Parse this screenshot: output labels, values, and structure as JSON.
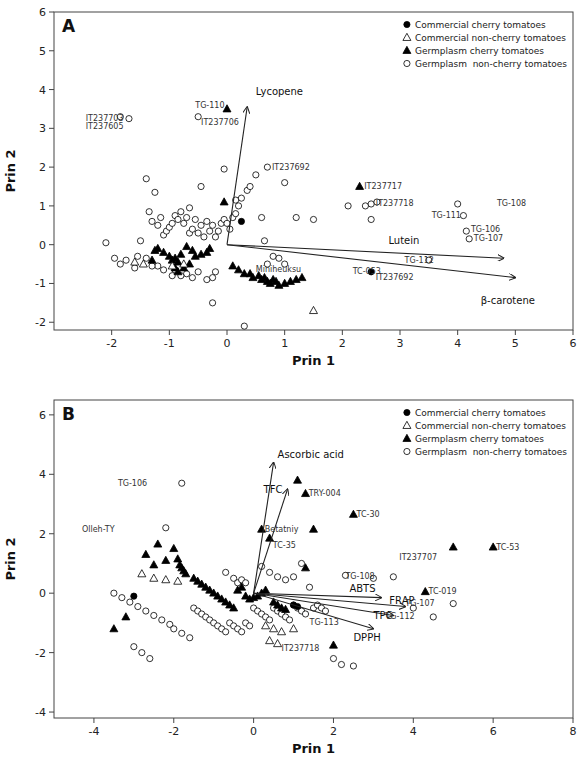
{
  "chart_data": [
    {
      "type": "scatter",
      "title": "A",
      "x_label": "Prin 1",
      "y_label": "Prin 2",
      "xlim": [
        -3,
        6
      ],
      "ylim": [
        -2.2,
        6
      ],
      "xticks": [
        -2,
        -1,
        0,
        1,
        2,
        3,
        4,
        5,
        6
      ],
      "yticks": [
        -2,
        -1,
        0,
        1,
        2,
        3,
        4,
        5,
        6
      ],
      "grid": false,
      "legend": "upper right",
      "series": [
        {
          "name": "Commercial cherry tomatoes",
          "marker": "circle",
          "color": "black",
          "x": [
            0.25,
            2.5
          ],
          "values": [
            0.6,
            -0.7
          ]
        },
        {
          "name": "Commercial non-cherry tomatoes",
          "marker": "triangle-open",
          "color": "black",
          "x": [
            -1.6,
            -1.45,
            -0.95,
            -0.75,
            1.5
          ],
          "values": [
            -0.45,
            -0.5,
            -0.55,
            -0.5,
            -1.7
          ]
        },
        {
          "name": "Germplasm cherry tomatoes",
          "marker": "triangle",
          "color": "black",
          "x": [
            0.0,
            -0.3,
            -0.05,
            -0.35,
            -0.45,
            -0.55,
            -0.6,
            -0.65,
            -0.7,
            -0.75,
            -0.8,
            -0.85,
            -0.9,
            -0.9,
            -0.85,
            -0.95,
            -1.0,
            -1.1,
            -1.2,
            -1.25,
            -1.3,
            0.1,
            0.2,
            0.3,
            0.4,
            0.45,
            0.55,
            0.6,
            0.65,
            0.7,
            0.75,
            0.8,
            0.85,
            0.9,
            1.0,
            1.1,
            1.2,
            1.3,
            2.3
          ],
          "values": [
            3.5,
            -0.1,
            1.1,
            -0.2,
            -0.25,
            -0.3,
            -0.15,
            -0.5,
            -0.05,
            -0.6,
            -0.25,
            -0.45,
            -0.35,
            -0.6,
            -0.7,
            -0.4,
            -0.3,
            -0.2,
            -0.1,
            -0.15,
            -0.4,
            -0.55,
            -0.65,
            -0.75,
            -0.75,
            -0.85,
            -0.8,
            -0.9,
            -0.85,
            -0.95,
            -1.0,
            -0.9,
            -0.95,
            -1.05,
            -1.0,
            -0.95,
            -0.9,
            -0.85,
            1.5
          ]
        },
        {
          "name": "Germplasm  non-cherry tomatoes",
          "marker": "circle-open",
          "color": "black",
          "x": [
            -2.1,
            -1.95,
            -1.85,
            -1.75,
            -1.6,
            -1.5,
            -1.4,
            -1.35,
            -1.3,
            -1.25,
            -1.2,
            -1.15,
            -1.1,
            -1.05,
            -1.0,
            -0.95,
            -0.9,
            -0.85,
            -0.8,
            -0.75,
            -0.7,
            -0.65,
            -0.6,
            -0.55,
            -0.5,
            -0.45,
            -0.4,
            -0.35,
            -0.3,
            -0.25,
            -0.2,
            -0.15,
            -0.1,
            -0.05,
            0.0,
            0.05,
            0.1,
            0.15,
            0.2,
            0.25,
            0.35,
            0.4,
            0.5,
            0.6,
            -0.2,
            -0.25,
            -0.35,
            -0.5,
            -0.6,
            -0.7,
            -0.8,
            -0.9,
            -0.95,
            -1.1,
            -1.2,
            -1.3,
            -1.4,
            -1.55,
            0.7,
            0.8,
            0.9,
            1.0,
            1.2,
            1.5,
            2.5,
            3.5,
            4.0,
            4.1,
            4.15,
            4.2,
            -0.05,
            0.15,
            0.65,
            -0.45,
            -0.65,
            -0.25,
            0.3,
            0.7,
            1.0,
            -1.7,
            -1.85,
            -0.5,
            2.1,
            2.4,
            2.5,
            2.6
          ],
          "values": [
            0.05,
            -0.35,
            -0.5,
            -0.4,
            -0.6,
            0.1,
            1.7,
            0.85,
            0.6,
            1.35,
            0.5,
            0.7,
            0.25,
            0.35,
            0.45,
            0.55,
            0.75,
            0.65,
            0.85,
            0.55,
            0.7,
            0.3,
            0.4,
            0.65,
            0.3,
            0.5,
            0.2,
            0.6,
            0.35,
            0.5,
            0.2,
            0.35,
            0.55,
            0.65,
            0.55,
            0.4,
            0.7,
            0.8,
            1.0,
            1.2,
            1.4,
            1.5,
            1.8,
            0.7,
            -0.7,
            -0.85,
            -0.9,
            -0.7,
            -0.85,
            -0.75,
            -0.8,
            -0.65,
            -0.8,
            -0.65,
            -0.55,
            -0.55,
            -0.35,
            -0.3,
            -0.5,
            -0.3,
            -0.35,
            -0.5,
            0.7,
            0.65,
            0.65,
            -0.4,
            1.05,
            0.75,
            0.35,
            0.15,
            1.95,
            1.15,
            0.1,
            1.5,
            0.95,
            -1.5,
            -2.1,
            2.0,
            1.6,
            3.25,
            3.3,
            3.3,
            1.0,
            1.0,
            1.05,
            1.1
          ]
        }
      ],
      "vectors": [
        {
          "label": "Lycopene",
          "from": [
            0,
            0
          ],
          "to": [
            0.35,
            3.55
          ],
          "label_at": [
            0.5,
            3.95
          ]
        },
        {
          "label": "Lutein",
          "from": [
            0,
            0
          ],
          "to": [
            4.8,
            -0.35
          ],
          "label_at": [
            2.8,
            0.1
          ]
        },
        {
          "label": "β-carotene",
          "from": [
            0,
            0
          ],
          "to": [
            5.0,
            -0.85
          ],
          "label_at": [
            4.4,
            -1.45
          ]
        }
      ],
      "annotations": [
        {
          "text": "TG-110",
          "x": -0.55,
          "y": 3.6
        },
        {
          "text": "IT237703",
          "x": -2.45,
          "y": 3.25
        },
        {
          "text": "IT237605",
          "x": -2.45,
          "y": 3.05
        },
        {
          "text": "IT237706",
          "x": -0.45,
          "y": 3.15
        },
        {
          "text": "IT237692",
          "x": 0.78,
          "y": 2.0
        },
        {
          "text": "IT237717",
          "x": 2.38,
          "y": 1.5
        },
        {
          "text": "IT237718",
          "x": 2.58,
          "y": 1.05
        },
        {
          "text": "TG-108",
          "x": 4.68,
          "y": 1.05
        },
        {
          "text": "TG-111",
          "x": 3.55,
          "y": 0.75
        },
        {
          "text": "TG-106",
          "x": 4.23,
          "y": 0.4
        },
        {
          "text": "TG-107",
          "x": 4.28,
          "y": 0.15
        },
        {
          "text": "TG-112",
          "x": 3.08,
          "y": -0.4
        },
        {
          "text": "Miniheuksu",
          "x": 0.5,
          "y": -0.65
        },
        {
          "text": "TC-053",
          "x": 2.18,
          "y": -0.7
        },
        {
          "text": "IT237692",
          "x": 2.58,
          "y": -0.85
        }
      ]
    },
    {
      "type": "scatter",
      "title": "B",
      "x_label": "Prin 1",
      "y_label": "Prin 2",
      "xlim": [
        -5,
        8
      ],
      "ylim": [
        -4.2,
        6.5
      ],
      "xticks": [
        -4,
        -2,
        0,
        2,
        4,
        6,
        8
      ],
      "yticks": [
        -4,
        -2,
        0,
        2,
        4,
        6
      ],
      "grid": false,
      "legend": "upper right",
      "series": [
        {
          "name": "Commercial cherry tomatoes",
          "marker": "circle",
          "color": "black",
          "x": [
            -3.0,
            1.0,
            1.1
          ],
          "values": [
            -0.1,
            -0.4,
            -0.45
          ]
        },
        {
          "name": "Commercial non-cherry tomatoes",
          "marker": "triangle-open",
          "color": "black",
          "x": [
            -2.8,
            -2.5,
            -2.2,
            -1.9,
            0.3,
            0.5,
            0.7,
            1.0,
            0.4,
            0.6
          ],
          "values": [
            0.65,
            0.5,
            0.45,
            0.4,
            -1.1,
            -1.2,
            -1.3,
            -1.2,
            -1.6,
            -1.7
          ]
        },
        {
          "name": "Germplasm cherry tomatoes",
          "marker": "triangle",
          "color": "black",
          "x": [
            -3.5,
            -3.2,
            -2.7,
            -2.5,
            -2.4,
            -2.2,
            -2.0,
            -1.9,
            -1.85,
            -1.8,
            -1.75,
            -1.7,
            -1.5,
            -1.4,
            -1.3,
            -1.2,
            -1.1,
            -1.0,
            -0.9,
            -0.8,
            -0.7,
            -0.6,
            -0.5,
            -0.4,
            -0.3,
            -0.2,
            -0.1,
            0.0,
            0.1,
            0.2,
            0.3,
            0.5,
            0.6,
            0.7,
            0.8,
            1.3,
            1.5,
            2.0,
            2.5,
            4.3,
            5.0,
            6.0,
            1.1,
            1.3,
            0.2,
            0.4
          ],
          "values": [
            -1.2,
            -0.8,
            1.3,
            0.95,
            1.65,
            1.1,
            1.5,
            1.15,
            0.95,
            0.85,
            0.75,
            0.65,
            0.5,
            0.4,
            0.3,
            0.2,
            0.1,
            0.0,
            -0.1,
            -0.2,
            -0.3,
            -0.4,
            -0.5,
            0.1,
            0.2,
            -0.1,
            -0.2,
            -0.15,
            -0.1,
            0.0,
            0.1,
            -0.3,
            -0.4,
            -0.5,
            -0.55,
            0.85,
            2.15,
            -1.75,
            2.65,
            0.05,
            1.55,
            1.55,
            3.8,
            3.35,
            2.15,
            1.85
          ]
        },
        {
          "name": "Germplasm  non-cherry tomatoes",
          "marker": "circle-open",
          "color": "black",
          "x": [
            -3.5,
            -3.3,
            -3.1,
            -2.9,
            -2.7,
            -2.5,
            -2.3,
            -2.1,
            -2.0,
            -1.8,
            -1.6,
            -3.0,
            -2.8,
            -2.6,
            -1.5,
            -1.4,
            -1.3,
            -1.2,
            -1.1,
            -1.0,
            -0.9,
            -0.8,
            -0.7,
            -0.6,
            -0.5,
            -0.4,
            -0.3,
            -0.2,
            -0.1,
            0.0,
            0.1,
            0.2,
            0.3,
            0.4,
            0.5,
            0.6,
            0.7,
            0.8,
            0.9,
            1.0,
            1.1,
            1.2,
            1.3,
            1.5,
            1.6,
            1.7,
            1.8,
            2.0,
            2.2,
            2.5,
            3.5,
            4.0,
            4.5,
            5.0,
            0.2,
            0.4,
            0.6,
            0.8,
            1.0,
            1.2,
            1.4,
            -0.5,
            -0.4,
            -0.3,
            -0.2,
            -1.8,
            2.3,
            -2.2,
            3.0,
            -0.7
          ],
          "values": [
            0.0,
            -0.15,
            -0.3,
            -0.45,
            -0.6,
            -0.75,
            -0.9,
            -1.05,
            -1.2,
            -1.35,
            -1.5,
            -1.8,
            -2.0,
            -2.2,
            -0.5,
            -0.6,
            -0.7,
            -0.8,
            -0.9,
            -1.0,
            -1.1,
            -1.2,
            -1.3,
            -1.0,
            -1.1,
            -1.2,
            -1.3,
            -1.0,
            -1.1,
            -0.5,
            -0.6,
            -0.7,
            -0.8,
            -0.9,
            -0.5,
            -0.6,
            -0.7,
            -0.8,
            -0.9,
            -0.4,
            -0.5,
            -0.6,
            -0.7,
            -0.5,
            -0.4,
            -0.5,
            -0.6,
            -2.2,
            -2.4,
            -2.45,
            0.55,
            -0.5,
            -0.8,
            -0.35,
            0.9,
            0.7,
            0.55,
            0.45,
            0.55,
            1.0,
            0.2,
            0.5,
            0.35,
            0.45,
            0.35,
            3.7,
            0.6,
            2.2,
            0.5,
            0.7
          ]
        }
      ],
      "vectors": [
        {
          "label": "Ascorbic acid",
          "from": [
            0,
            0
          ],
          "to": [
            0.5,
            4.4
          ],
          "label_at": [
            0.6,
            4.65
          ]
        },
        {
          "label": "TFC",
          "from": [
            0,
            0
          ],
          "to": [
            0.85,
            3.5
          ],
          "label_at": [
            0.25,
            3.5
          ]
        },
        {
          "label": "ABTS",
          "from": [
            0,
            0
          ],
          "to": [
            3.2,
            -0.15
          ],
          "label_at": [
            2.4,
            0.15
          ]
        },
        {
          "label": "FRAP",
          "from": [
            0,
            0
          ],
          "to": [
            3.8,
            -0.45
          ],
          "label_at": [
            3.4,
            -0.25
          ]
        },
        {
          "label": "TPC",
          "from": [
            0,
            0
          ],
          "to": [
            3.5,
            -0.75
          ],
          "label_at": [
            3.0,
            -0.75
          ]
        },
        {
          "label": "DPPH",
          "from": [
            0,
            0
          ],
          "to": [
            3.0,
            -1.2
          ],
          "label_at": [
            2.5,
            -1.5
          ]
        }
      ],
      "annotations": [
        {
          "text": "TG-106",
          "x": -3.4,
          "y": 3.7
        },
        {
          "text": "Olleh-TY",
          "x": -4.3,
          "y": 2.15
        },
        {
          "text": "Betatniy",
          "x": 0.28,
          "y": 2.15
        },
        {
          "text": "TC-35",
          "x": 0.48,
          "y": 1.6
        },
        {
          "text": "TRY-004",
          "x": 1.38,
          "y": 3.35
        },
        {
          "text": "TC-30",
          "x": 2.58,
          "y": 2.65
        },
        {
          "text": "TC-53",
          "x": 6.08,
          "y": 1.55
        },
        {
          "text": "TG-108",
          "x": 2.3,
          "y": 0.55
        },
        {
          "text": "IT237707",
          "x": 3.65,
          "y": 1.2
        },
        {
          "text": "TC-019",
          "x": 4.38,
          "y": 0.05
        },
        {
          "text": "TG-107",
          "x": 3.8,
          "y": -0.35
        },
        {
          "text": "TG-112",
          "x": 3.3,
          "y": -0.8
        },
        {
          "text": "IT237718",
          "x": 0.7,
          "y": -1.85
        },
        {
          "text": "TG-113",
          "x": 1.4,
          "y": -1.0
        }
      ]
    }
  ]
}
